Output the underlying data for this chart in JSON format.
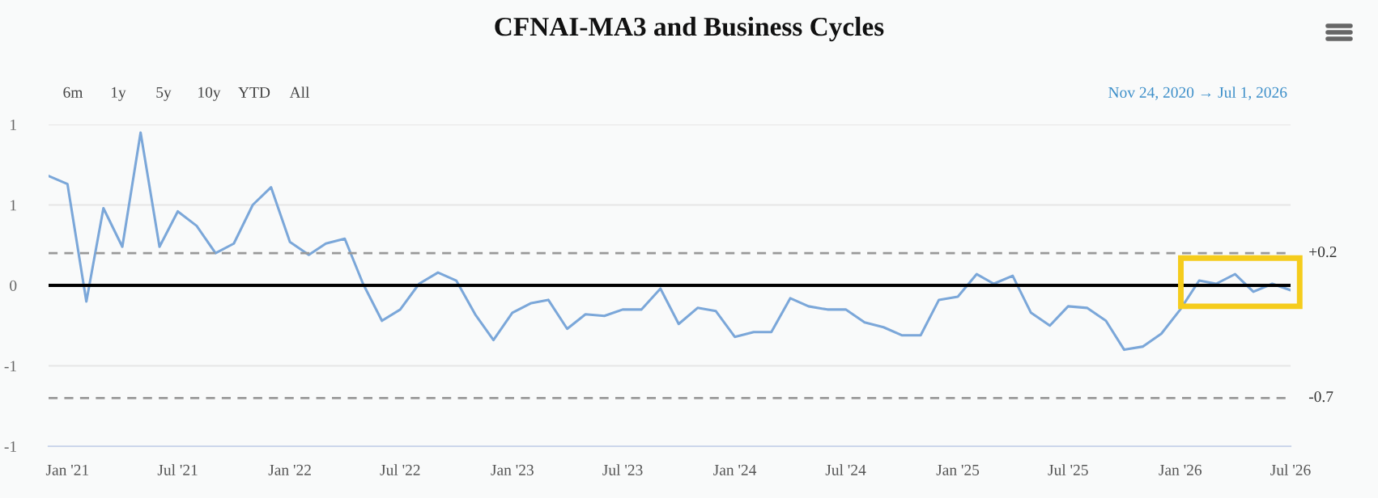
{
  "chart_data": {
    "type": "line",
    "title": "CFNAI-MA3 and Business Cycles",
    "x": [
      "2020-12",
      "2021-01",
      "2021-02",
      "2021-03",
      "2021-04",
      "2021-05",
      "2021-06",
      "2021-07",
      "2021-08",
      "2021-09",
      "2021-10",
      "2021-11",
      "2021-12",
      "2022-01",
      "2022-02",
      "2022-03",
      "2022-04",
      "2022-05",
      "2022-06",
      "2022-07",
      "2022-08",
      "2022-09",
      "2022-10",
      "2022-11",
      "2022-12",
      "2023-01",
      "2023-02",
      "2023-03",
      "2023-04",
      "2023-05",
      "2023-06",
      "2023-07",
      "2023-08",
      "2023-09",
      "2023-10",
      "2023-11",
      "2023-12",
      "2024-01",
      "2024-02",
      "2024-03",
      "2024-04",
      "2024-05",
      "2024-06",
      "2024-07",
      "2024-08",
      "2024-09",
      "2024-10",
      "2024-11",
      "2024-12",
      "2025-01",
      "2025-02",
      "2025-03",
      "2025-04",
      "2025-05",
      "2025-06",
      "2025-07",
      "2025-08",
      "2025-09",
      "2025-10",
      "2025-11",
      "2025-12",
      "2026-01",
      "2026-02",
      "2026-03",
      "2026-04",
      "2026-05",
      "2026-06",
      "2026-07"
    ],
    "series": [
      {
        "color": "#7ba7d9",
        "values": [
          0.68,
          0.63,
          -0.1,
          0.48,
          0.24,
          0.95,
          0.24,
          0.46,
          0.37,
          0.2,
          0.26,
          0.5,
          0.61,
          0.27,
          0.19,
          0.26,
          0.29,
          0.01,
          -0.22,
          -0.15,
          0.01,
          0.08,
          0.03,
          -0.18,
          -0.34,
          -0.17,
          -0.11,
          -0.09,
          -0.27,
          -0.18,
          -0.19,
          -0.15,
          -0.15,
          -0.02,
          -0.24,
          -0.14,
          -0.16,
          -0.32,
          -0.29,
          -0.29,
          -0.08,
          -0.13,
          -0.15,
          -0.15,
          -0.23,
          -0.26,
          -0.31,
          -0.31,
          -0.09,
          -0.07,
          0.07,
          0.01,
          0.06,
          -0.17,
          -0.25,
          -0.13,
          -0.14,
          -0.22,
          -0.4,
          -0.38,
          -0.3,
          -0.15,
          0.03,
          0.01,
          0.07,
          -0.04,
          0.01,
          -0.03
        ]
      }
    ],
    "xlim": [
      "2020-12-01",
      "2026-07-01"
    ],
    "xticks": [
      {
        "value": "2021-01",
        "label": "Jan '21"
      },
      {
        "value": "2021-07",
        "label": "Jul '21"
      },
      {
        "value": "2022-01",
        "label": "Jan '22"
      },
      {
        "value": "2022-07",
        "label": "Jul '22"
      },
      {
        "value": "2023-01",
        "label": "Jan '23"
      },
      {
        "value": "2023-07",
        "label": "Jul '23"
      },
      {
        "value": "2024-01",
        "label": "Jan '24"
      },
      {
        "value": "2024-07",
        "label": "Jul '24"
      },
      {
        "value": "2025-01",
        "label": "Jan '25"
      },
      {
        "value": "2025-07",
        "label": "Jul '25"
      },
      {
        "value": "2026-01",
        "label": "Jan '26"
      },
      {
        "value": "2026-07",
        "label": "Jul '26"
      }
    ],
    "ylim": [
      -1,
      1
    ],
    "yticks": [
      {
        "value": -1,
        "label": "-1"
      },
      {
        "value": -0.5,
        "label": "-1"
      },
      0,
      {
        "value": 0.5,
        "label": "1"
      },
      1
    ],
    "grid": "y",
    "ref_lines": [
      {
        "axis": "y",
        "value": 0.2,
        "label": "+0.2",
        "color": "#999999",
        "line_style": "dashed"
      },
      {
        "axis": "y",
        "value": 0,
        "label": null,
        "color": "#000000",
        "line_style": "solid"
      },
      {
        "axis": "y",
        "value": -0.7,
        "label": "-0.7",
        "color": "#999999",
        "line_style": "dashed"
      }
    ],
    "annotations": [
      "6m",
      "1y",
      "5y",
      "10y",
      "YTD",
      "All",
      "Nov 24, 2020 → Jul 1, 2026"
    ]
  }
}
